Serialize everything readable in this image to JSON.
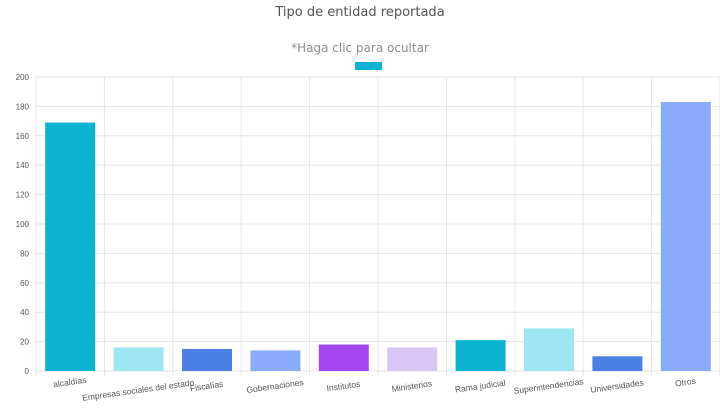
{
  "chart_data": {
    "type": "bar",
    "title": "Tipo de entidad reportada",
    "subtitle": "*Haga clic para ocultar",
    "categories": [
      "alcaldías",
      "Empresas sociales del estado",
      "Fiscalías",
      "Gobernaciones",
      "Institutos",
      "Ministerios",
      "Rama judicial",
      "Superintendencias",
      "Universidades",
      "Otros"
    ],
    "values": [
      169,
      16,
      15,
      14,
      18,
      16,
      21,
      29,
      10,
      183
    ],
    "colors": [
      "#0ab3d2",
      "#9ee6f2",
      "#4a7fe6",
      "#8aabfc",
      "#a345f2",
      "#d8c6f4",
      "#0ab3d2",
      "#9ee6f2",
      "#4a7fe6",
      "#8aabfc"
    ],
    "legend_color": "#0ab3d2",
    "ylim": [
      0,
      200
    ],
    "yticks": [
      0,
      20,
      40,
      60,
      80,
      100,
      120,
      140,
      160,
      180,
      200
    ],
    "grid": true,
    "legend": "top-center"
  }
}
